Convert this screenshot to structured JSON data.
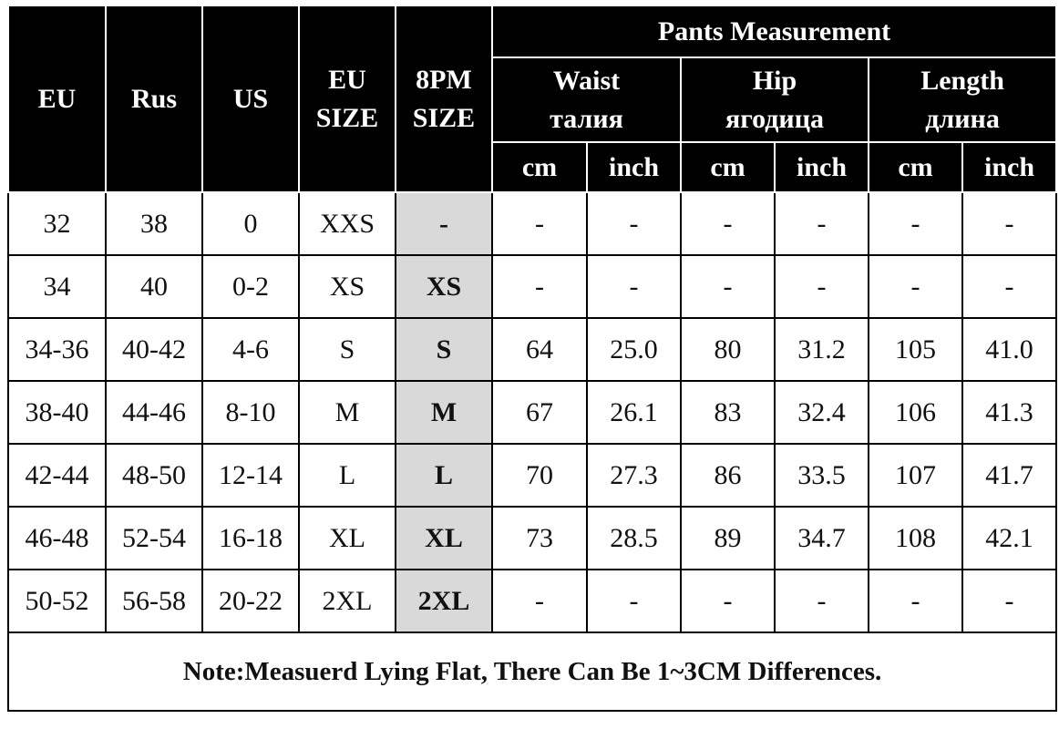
{
  "header": {
    "columns": [
      "EU",
      "Rus",
      "US",
      "EU SIZE",
      "8PM SIZE"
    ],
    "group": "Pants Measurement",
    "measures": [
      {
        "name": "Waist",
        "name_ru": "талия"
      },
      {
        "name": "Hip",
        "name_ru": "ягодица"
      },
      {
        "name": "Length",
        "name_ru": "длина"
      }
    ],
    "units": [
      "cm",
      "inch",
      "cm",
      "inch",
      "cm",
      "inch"
    ]
  },
  "table": {
    "rows": [
      [
        "32",
        "38",
        "0",
        "XXS",
        "-",
        "-",
        "-",
        "-",
        "-",
        "-",
        "-"
      ],
      [
        "34",
        "40",
        "0-2",
        "XS",
        "XS",
        "-",
        "-",
        "-",
        "-",
        "-",
        "-"
      ],
      [
        "34-36",
        "40-42",
        "4-6",
        "S",
        "S",
        "64",
        "25.0",
        "80",
        "31.2",
        "105",
        "41.0"
      ],
      [
        "38-40",
        "44-46",
        "8-10",
        "M",
        "M",
        "67",
        "26.1",
        "83",
        "32.4",
        "106",
        "41.3"
      ],
      [
        "42-44",
        "48-50",
        "12-14",
        "L",
        "L",
        "70",
        "27.3",
        "86",
        "33.5",
        "107",
        "41.7"
      ],
      [
        "46-48",
        "52-54",
        "16-18",
        "XL",
        "XL",
        "73",
        "28.5",
        "89",
        "34.7",
        "108",
        "42.1"
      ],
      [
        "50-52",
        "56-58",
        "20-22",
        "2XL",
        "2XL",
        "-",
        "-",
        "-",
        "-",
        "-",
        "-"
      ]
    ]
  },
  "note": "Note:Measuerd Lying Flat, There Can Be 1~3CM Differences."
}
